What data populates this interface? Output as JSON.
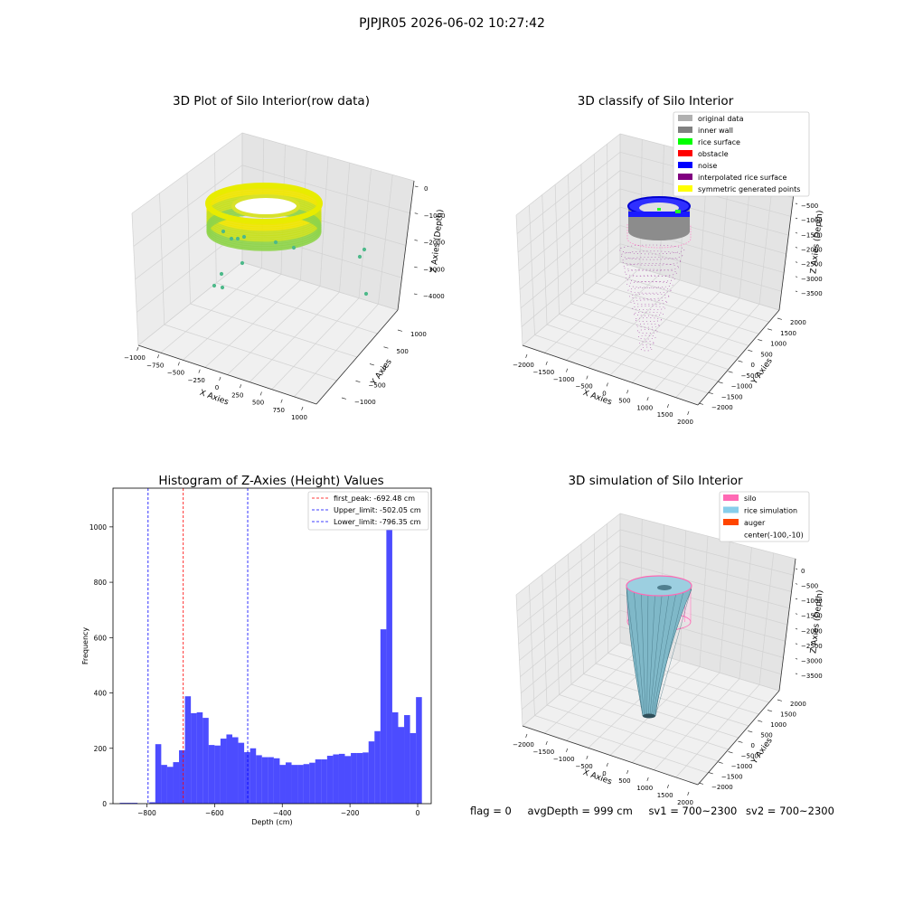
{
  "figure": {
    "suptitle": "PJPJR05 2026-06-02 10:27:42"
  },
  "panel_raw": {
    "title": "3D Plot of Silo Interior(row data)",
    "x_label": "X Axies",
    "y_label": "Y Axies",
    "z_label": "Z Axies (Depth)",
    "x_ticks": [
      "−1000",
      "−750",
      "−500",
      "−250",
      "0",
      "250",
      "500",
      "750",
      "1000"
    ],
    "y_ticks": [
      "−1000",
      "−500",
      "0",
      "500",
      "1000"
    ],
    "z_ticks": [
      "0",
      "−1000",
      "−2000",
      "−3000",
      "−4000"
    ],
    "ring_colors": [
      "#f0e600",
      "#c8e01e",
      "#8fd44a",
      "#46b98a"
    ]
  },
  "panel_classify": {
    "title": "3D classify of Silo Interior",
    "x_label": "X Axies",
    "y_label": "Y Axies",
    "z_label": "Z Axies (Depth)",
    "x_ticks": [
      "−2000",
      "−1500",
      "−1000",
      "−500",
      "0",
      "500",
      "1000",
      "1500",
      "2000"
    ],
    "y_ticks": [
      "−2000",
      "−1500",
      "−1000",
      "−500",
      "0",
      "500",
      "1000",
      "1500",
      "2000"
    ],
    "z_ticks": [
      "−500",
      "−1000",
      "−1500",
      "−2000",
      "−2500",
      "−3000",
      "−3500"
    ],
    "legend": [
      {
        "label": "original data",
        "color": "#b0b0b0"
      },
      {
        "label": "inner wall",
        "color": "#808080"
      },
      {
        "label": "rice surface",
        "color": "#00ff00"
      },
      {
        "label": "obstacle",
        "color": "#ff0000"
      },
      {
        "label": "noise",
        "color": "#0000ff"
      },
      {
        "label": "interpolated rice surface",
        "color": "#800080"
      },
      {
        "label": "symmetric generated points",
        "color": "#ffff00"
      }
    ]
  },
  "panel_sim": {
    "title": "3D simulation of Silo Interior",
    "x_label": "X Axies",
    "y_label": "Y Axies",
    "z_label": "Z Axies (Depth)",
    "x_ticks": [
      "−2000",
      "−1500",
      "−1000",
      "−500",
      "0",
      "500",
      "1000",
      "1500",
      "2000"
    ],
    "y_ticks": [
      "−2000",
      "−1500",
      "−1000",
      "−500",
      "0",
      "500",
      "1000",
      "1500",
      "2000"
    ],
    "z_ticks": [
      "0",
      "−500",
      "−1000",
      "−1500",
      "−2000",
      "−2500",
      "−3000",
      "−3500"
    ],
    "legend": [
      {
        "label": "silo",
        "color": "#ff69b4"
      },
      {
        "label": "rice simulation",
        "color": "#87ceeb"
      },
      {
        "label": "auger",
        "color": "#ff4500"
      },
      {
        "label": "center(-100,-10)",
        "color": ""
      }
    ]
  },
  "footer": {
    "flag": "flag = 0",
    "avg_depth": "avgDepth = 999 cm",
    "sv1": "sv1 = 700~2300",
    "sv2": "sv2 = 700~2300"
  },
  "chart_data": [
    {
      "type": "histogram",
      "title": "Histogram of Z-Axies (Height) Values",
      "xlabel": "Depth (cm)",
      "ylabel": "Frequency",
      "xlim": [
        -900,
        40
      ],
      "ylim": [
        0,
        1140
      ],
      "x_ticks": [
        -800,
        -600,
        -400,
        -200,
        0
      ],
      "x_tick_labels": [
        "−800",
        "−600",
        "−400",
        "−200",
        "0"
      ],
      "y_ticks": [
        0,
        200,
        400,
        600,
        800,
        1000
      ],
      "y_tick_labels": [
        "0",
        "200",
        "400",
        "600",
        "800",
        "1000"
      ],
      "bar_color": "#0000ff",
      "bin_start": -880,
      "bin_width": 17.5,
      "counts": [
        3,
        3,
        3,
        0,
        0,
        5,
        215,
        140,
        133,
        150,
        193,
        388,
        327,
        330,
        310,
        212,
        210,
        235,
        250,
        240,
        220,
        186,
        200,
        175,
        168,
        168,
        164,
        140,
        149,
        140,
        140,
        143,
        148,
        160,
        160,
        173,
        178,
        180,
        172,
        183,
        183,
        185,
        225,
        262,
        630,
        1080,
        330,
        277,
        320,
        255,
        385
      ],
      "vlines": [
        {
          "label": "first_peak: -692.48 cm",
          "x": -692.48,
          "color": "#ff0000"
        },
        {
          "label": "Upper_limit: -502.05 cm",
          "x": -502.05,
          "color": "#0000ff"
        },
        {
          "label": "Lower_limit: -796.35 cm",
          "x": -796.35,
          "color": "#0000ff"
        }
      ],
      "legend_position": "top-right"
    }
  ]
}
